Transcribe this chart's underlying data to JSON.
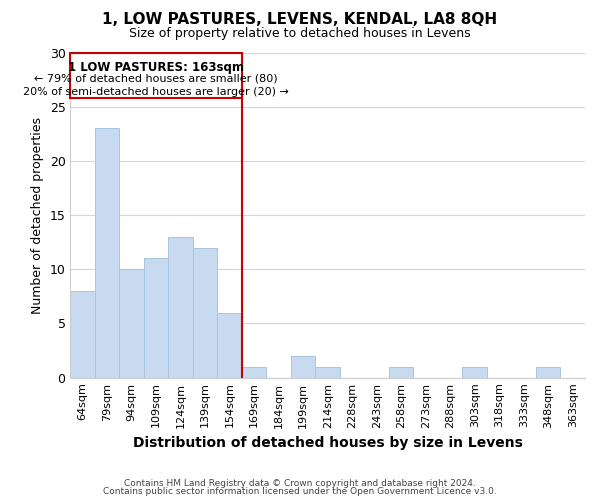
{
  "title": "1, LOW PASTURES, LEVENS, KENDAL, LA8 8QH",
  "subtitle": "Size of property relative to detached houses in Levens",
  "xlabel": "Distribution of detached houses by size in Levens",
  "ylabel": "Number of detached properties",
  "bar_color": "#c8daf0",
  "bar_edge_color": "#a8c4e0",
  "categories": [
    "64sqm",
    "79sqm",
    "94sqm",
    "109sqm",
    "124sqm",
    "139sqm",
    "154sqm",
    "169sqm",
    "184sqm",
    "199sqm",
    "214sqm",
    "228sqm",
    "243sqm",
    "258sqm",
    "273sqm",
    "288sqm",
    "303sqm",
    "318sqm",
    "333sqm",
    "348sqm",
    "363sqm"
  ],
  "values": [
    8,
    23,
    10,
    11,
    13,
    12,
    6,
    1,
    0,
    2,
    1,
    0,
    0,
    1,
    0,
    0,
    1,
    0,
    0,
    1,
    0
  ],
  "vline_color": "#cc0000",
  "vline_position": 6.5,
  "ylim": [
    0,
    30
  ],
  "yticks": [
    0,
    5,
    10,
    15,
    20,
    25,
    30
  ],
  "annotation_title": "1 LOW PASTURES: 163sqm",
  "annotation_line1": "← 79% of detached houses are smaller (80)",
  "annotation_line2": "20% of semi-detached houses are larger (20) →",
  "footer1": "Contains HM Land Registry data © Crown copyright and database right 2024.",
  "footer2": "Contains public sector information licensed under the Open Government Licence v3.0.",
  "background_color": "#ffffff",
  "grid_color": "#c8d8e8"
}
